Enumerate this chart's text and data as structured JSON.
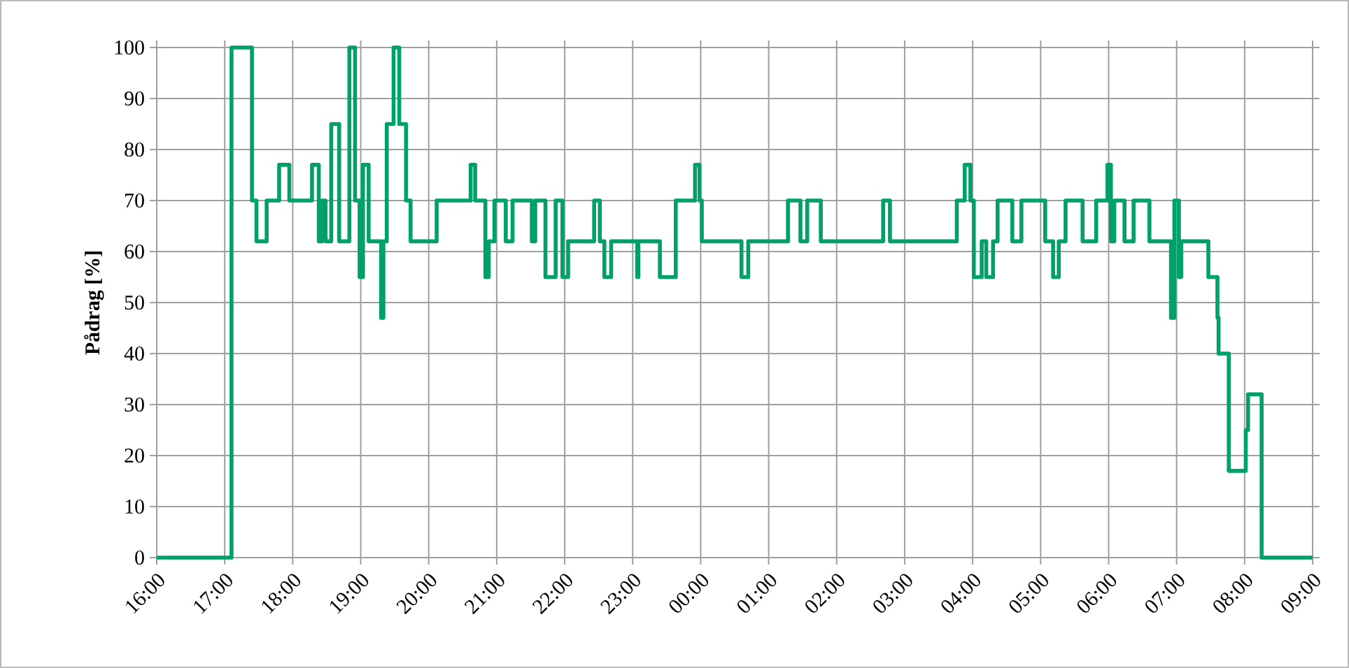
{
  "chart_data": {
    "type": "step",
    "ylabel": "Pådrag [%]",
    "color": "#00a06a",
    "line_style": "solid",
    "grid": true,
    "xlim": [
      "2000-01-01T16:00",
      "2000-01-02T09:00"
    ],
    "ylim": [
      0,
      100
    ],
    "xticks": [
      {
        "value": "2000-01-01T16:00",
        "label": "16:00"
      },
      {
        "value": "2000-01-01T17:00",
        "label": "17:00"
      },
      {
        "value": "2000-01-01T18:00",
        "label": "18:00"
      },
      {
        "value": "2000-01-01T19:00",
        "label": "19:00"
      },
      {
        "value": "2000-01-01T20:00",
        "label": "20:00"
      },
      {
        "value": "2000-01-01T21:00",
        "label": "21:00"
      },
      {
        "value": "2000-01-01T22:00",
        "label": "22:00"
      },
      {
        "value": "2000-01-01T23:00",
        "label": "23:00"
      },
      {
        "value": "2000-01-02T00:00",
        "label": "00:00"
      },
      {
        "value": "2000-01-02T01:00",
        "label": "01:00"
      },
      {
        "value": "2000-01-02T02:00",
        "label": "02:00"
      },
      {
        "value": "2000-01-02T03:00",
        "label": "03:00"
      },
      {
        "value": "2000-01-02T04:00",
        "label": "04:00"
      },
      {
        "value": "2000-01-02T05:00",
        "label": "05:00"
      },
      {
        "value": "2000-01-02T06:00",
        "label": "06:00"
      },
      {
        "value": "2000-01-02T07:00",
        "label": "07:00"
      },
      {
        "value": "2000-01-02T08:00",
        "label": "08:00"
      },
      {
        "value": "2000-01-02T09:00",
        "label": "09:00"
      }
    ],
    "yticks": [
      0,
      10,
      20,
      30,
      40,
      50,
      60,
      70,
      80,
      90,
      100
    ],
    "x": [
      "2000-01-01T16:00",
      "2000-01-01T17:06",
      "2000-01-01T17:24",
      "2000-01-01T17:28",
      "2000-01-01T17:37",
      "2000-01-01T17:48",
      "2000-01-01T17:57",
      "2000-01-01T18:17",
      "2000-01-01T18:23",
      "2000-01-01T18:26",
      "2000-01-01T18:29",
      "2000-01-01T18:34",
      "2000-01-01T18:41",
      "2000-01-01T18:50",
      "2000-01-01T18:55",
      "2000-01-01T18:59",
      "2000-01-01T19:02",
      "2000-01-01T19:07",
      "2000-01-01T19:18",
      "2000-01-01T19:20",
      "2000-01-01T19:23",
      "2000-01-01T19:29",
      "2000-01-01T19:34",
      "2000-01-01T19:40",
      "2000-01-01T19:44",
      "2000-01-01T20:07",
      "2000-01-01T20:37",
      "2000-01-01T20:41",
      "2000-01-01T20:50",
      "2000-01-01T20:53",
      "2000-01-01T20:58",
      "2000-01-01T21:08",
      "2000-01-01T21:14",
      "2000-01-01T21:31",
      "2000-01-01T21:34",
      "2000-01-01T21:43",
      "2000-01-01T21:52",
      "2000-01-01T21:58",
      "2000-01-01T22:03",
      "2000-01-01T22:26",
      "2000-01-01T22:31",
      "2000-01-01T22:35",
      "2000-01-01T22:41",
      "2000-01-01T23:04",
      "2000-01-01T23:05",
      "2000-01-01T23:24",
      "2000-01-01T23:38",
      "2000-01-01T23:55",
      "2000-01-01T23:59",
      "2000-01-02T00:01",
      "2000-01-02T00:36",
      "2000-01-02T00:42",
      "2000-01-02T01:17",
      "2000-01-02T01:28",
      "2000-01-02T01:34",
      "2000-01-02T01:46",
      "2000-01-02T02:41",
      "2000-01-02T02:47",
      "2000-01-02T03:46",
      "2000-01-02T03:53",
      "2000-01-02T03:58",
      "2000-01-02T04:01",
      "2000-01-02T04:08",
      "2000-01-02T04:12",
      "2000-01-02T04:18",
      "2000-01-02T04:22",
      "2000-01-02T04:35",
      "2000-01-02T04:43",
      "2000-01-02T05:04",
      "2000-01-02T05:11",
      "2000-01-02T05:16",
      "2000-01-02T05:22",
      "2000-01-02T05:37",
      "2000-01-02T05:49",
      "2000-01-02T05:59",
      "2000-01-02T06:02",
      "2000-01-02T06:05",
      "2000-01-02T06:14",
      "2000-01-02T06:22",
      "2000-01-02T06:36",
      "2000-01-02T06:55",
      "2000-01-02T06:58",
      "2000-01-02T07:02",
      "2000-01-02T07:04",
      "2000-01-02T07:28",
      "2000-01-02T07:36",
      "2000-01-02T07:37",
      "2000-01-02T07:46",
      "2000-01-02T08:01",
      "2000-01-02T08:03",
      "2000-01-02T08:15",
      "2000-01-02T09:00"
    ],
    "values": [
      0,
      100,
      70,
      62,
      70,
      77,
      70,
      77,
      62,
      70,
      62,
      85,
      62,
      100,
      70,
      55,
      77,
      62,
      47,
      62,
      85,
      100,
      85,
      70,
      62,
      70,
      77,
      70,
      55,
      62,
      70,
      62,
      70,
      62,
      70,
      55,
      70,
      55,
      62,
      70,
      62,
      55,
      62,
      55,
      62,
      55,
      70,
      77,
      70,
      62,
      55,
      62,
      70,
      62,
      70,
      62,
      70,
      62,
      70,
      77,
      70,
      55,
      62,
      55,
      62,
      70,
      62,
      70,
      62,
      55,
      62,
      70,
      62,
      70,
      77,
      62,
      70,
      62,
      70,
      62,
      47,
      70,
      55,
      62,
      55,
      47,
      40,
      17,
      25,
      32,
      0,
      0
    ]
  }
}
